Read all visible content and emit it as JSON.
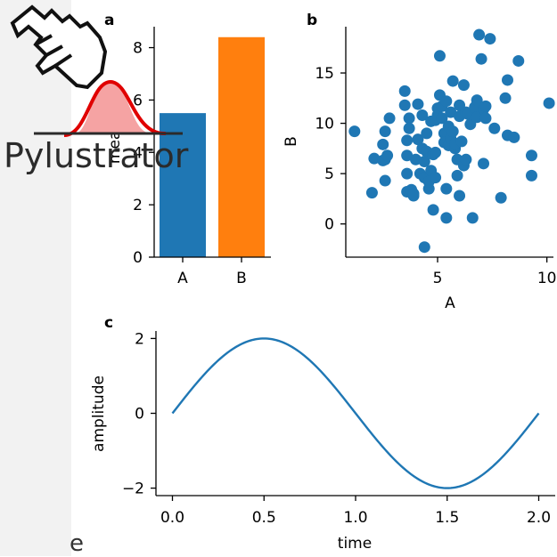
{
  "app": {
    "logo_text": "Pylustrator",
    "sidebar_stub_text": "e"
  },
  "colors": {
    "blue": "#1f77b4",
    "orange": "#ff7f0e",
    "logo_red": "#e00000",
    "logo_fill": "#f5a3a3"
  },
  "icons": {
    "cursor": "hand-pointer-icon"
  },
  "chart_data": [
    {
      "panel": "a",
      "type": "bar",
      "categories": [
        "A",
        "B"
      ],
      "values": [
        5.5,
        8.4
      ],
      "colors": [
        "#1f77b4",
        "#ff7f0e"
      ],
      "xlabel": "",
      "ylabel": "mean",
      "ylim": [
        0,
        8.8
      ],
      "yticks": [
        0,
        2,
        4,
        6,
        8
      ],
      "ytick_labels": [
        "0",
        "2",
        "4",
        "6",
        "8"
      ]
    },
    {
      "panel": "b",
      "type": "scatter",
      "xlabel": "A",
      "ylabel": "B",
      "xlim": [
        0.8,
        10.3
      ],
      "ylim": [
        -3.3,
        19.6
      ],
      "xticks": [
        5,
        10
      ],
      "xtick_labels": [
        "5",
        "10"
      ],
      "yticks": [
        0,
        5,
        10,
        15
      ],
      "ytick_labels": [
        "0",
        "5",
        "10",
        "15"
      ],
      "color": "#1f77b4",
      "points": [
        [
          1.2,
          9.2
        ],
        [
          2.0,
          3.1
        ],
        [
          2.1,
          6.5
        ],
        [
          2.5,
          6.3
        ],
        [
          2.5,
          7.9
        ],
        [
          2.6,
          4.3
        ],
        [
          2.6,
          6.4
        ],
        [
          2.6,
          9.2
        ],
        [
          2.7,
          6.8
        ],
        [
          2.8,
          10.5
        ],
        [
          3.5,
          13.2
        ],
        [
          3.5,
          11.8
        ],
        [
          3.6,
          5.0
        ],
        [
          3.6,
          8.3
        ],
        [
          3.6,
          6.8
        ],
        [
          3.6,
          3.2
        ],
        [
          3.7,
          10.5
        ],
        [
          3.7,
          9.5
        ],
        [
          3.8,
          3.4
        ],
        [
          3.9,
          2.8
        ],
        [
          3.9,
          3.0
        ],
        [
          4.0,
          6.4
        ],
        [
          4.1,
          8.4
        ],
        [
          4.1,
          11.9
        ],
        [
          4.2,
          5.0
        ],
        [
          4.3,
          7.5
        ],
        [
          4.3,
          10.8
        ],
        [
          4.4,
          -2.3
        ],
        [
          4.4,
          4.6
        ],
        [
          4.4,
          6.2
        ],
        [
          4.5,
          9.0
        ],
        [
          4.5,
          7.2
        ],
        [
          4.6,
          3.5
        ],
        [
          4.6,
          4.2
        ],
        [
          4.7,
          10.2
        ],
        [
          4.7,
          5.3
        ],
        [
          4.8,
          6.9
        ],
        [
          4.8,
          1.4
        ],
        [
          4.9,
          7.1
        ],
        [
          4.9,
          4.6
        ],
        [
          4.9,
          10.3
        ],
        [
          5.0,
          11.5
        ],
        [
          5.0,
          10.8
        ],
        [
          5.1,
          12.8
        ],
        [
          5.1,
          16.7
        ],
        [
          5.2,
          10.5
        ],
        [
          5.2,
          11.7
        ],
        [
          5.3,
          9.0
        ],
        [
          5.3,
          8.1
        ],
        [
          5.4,
          3.5
        ],
        [
          5.4,
          12.2
        ],
        [
          5.4,
          0.6
        ],
        [
          5.5,
          7.8
        ],
        [
          5.5,
          9.7
        ],
        [
          5.6,
          11.1
        ],
        [
          5.6,
          8.5
        ],
        [
          5.7,
          14.2
        ],
        [
          5.7,
          9.2
        ],
        [
          5.8,
          7.5
        ],
        [
          5.8,
          8.0
        ],
        [
          5.9,
          6.4
        ],
        [
          5.9,
          4.8
        ],
        [
          6.0,
          11.8
        ],
        [
          6.0,
          10.7
        ],
        [
          6.0,
          2.8
        ],
        [
          6.1,
          8.2
        ],
        [
          6.2,
          5.8
        ],
        [
          6.2,
          13.8
        ],
        [
          6.3,
          11.1
        ],
        [
          6.3,
          6.4
        ],
        [
          6.4,
          10.9
        ],
        [
          6.5,
          9.9
        ],
        [
          6.6,
          0.6
        ],
        [
          6.7,
          11.6
        ],
        [
          6.8,
          12.3
        ],
        [
          6.8,
          10.6
        ],
        [
          6.9,
          18.8
        ],
        [
          7.0,
          16.4
        ],
        [
          7.1,
          11.4
        ],
        [
          7.1,
          6.0
        ],
        [
          7.2,
          10.5
        ],
        [
          7.2,
          11.7
        ],
        [
          7.4,
          18.4
        ],
        [
          7.6,
          9.5
        ],
        [
          7.9,
          2.6
        ],
        [
          8.1,
          12.5
        ],
        [
          8.2,
          14.3
        ],
        [
          8.2,
          8.8
        ],
        [
          8.5,
          8.6
        ],
        [
          8.7,
          16.2
        ],
        [
          9.3,
          6.8
        ],
        [
          9.3,
          4.8
        ],
        [
          10.1,
          12.0
        ]
      ]
    },
    {
      "panel": "c",
      "type": "line",
      "function": "2*sin(pi*t)",
      "amplitude": 2,
      "frequency": 0.5,
      "x_range": [
        0,
        2
      ],
      "samples": 200,
      "color": "#1f77b4",
      "xlabel": "time",
      "ylabel": "amplitude",
      "xlim": [
        -0.09,
        2.09
      ],
      "ylim": [
        -2.2,
        2.2
      ],
      "xticks": [
        0,
        0.5,
        1,
        1.5,
        2
      ],
      "xtick_labels": [
        "0.0",
        "0.5",
        "1.0",
        "1.5",
        "2.0"
      ],
      "yticks": [
        -2,
        0,
        2
      ],
      "ytick_labels": [
        "−2",
        "0",
        "2"
      ]
    }
  ]
}
